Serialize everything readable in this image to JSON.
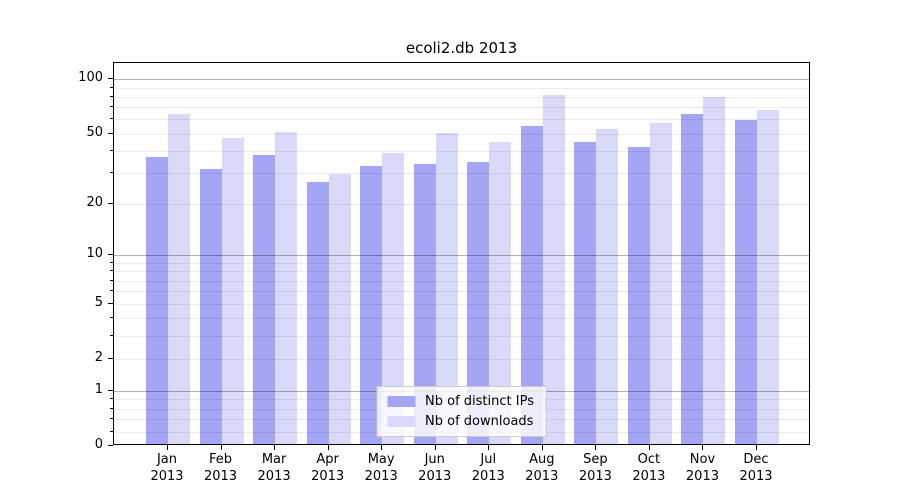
{
  "chart_data": {
    "type": "bar",
    "title": "ecoli2.db 2013",
    "categories": [
      "Jan",
      "Feb",
      "Mar",
      "Apr",
      "May",
      "Jun",
      "Jul",
      "Aug",
      "Sep",
      "Oct",
      "Nov",
      "Dec"
    ],
    "year_label": "2013",
    "series": [
      {
        "name": "Nb of distinct IPs",
        "color": "#a5a5f5",
        "values": [
          36,
          31,
          37,
          26,
          32,
          33,
          34,
          54,
          44,
          41,
          63,
          58
        ]
      },
      {
        "name": "Nb of downloads",
        "color": "#d9d9f9",
        "values": [
          63,
          46,
          50,
          29,
          38,
          49,
          44,
          80,
          52,
          56,
          78,
          66
        ]
      }
    ],
    "yscale": "log1p",
    "ylim": [
      0,
      123
    ],
    "ytick_labels": [
      "0",
      "1",
      "2",
      "5",
      "10",
      "20",
      "50",
      "100"
    ],
    "yticks": [
      0,
      1,
      2,
      5,
      10,
      20,
      50,
      100
    ],
    "major_gridlines": [
      1,
      10,
      100
    ],
    "minor_gridlines": [
      0.2,
      0.4,
      0.6,
      0.8,
      2,
      3,
      4,
      5,
      6,
      7,
      8,
      9,
      20,
      30,
      40,
      50,
      60,
      70,
      80,
      90
    ],
    "grid": true,
    "legend_position": "lower center",
    "colors": {
      "axis": "#000000",
      "text": "#000000",
      "major_grid": "#b3b3b3",
      "minor_grid": "#ebebeb"
    }
  }
}
